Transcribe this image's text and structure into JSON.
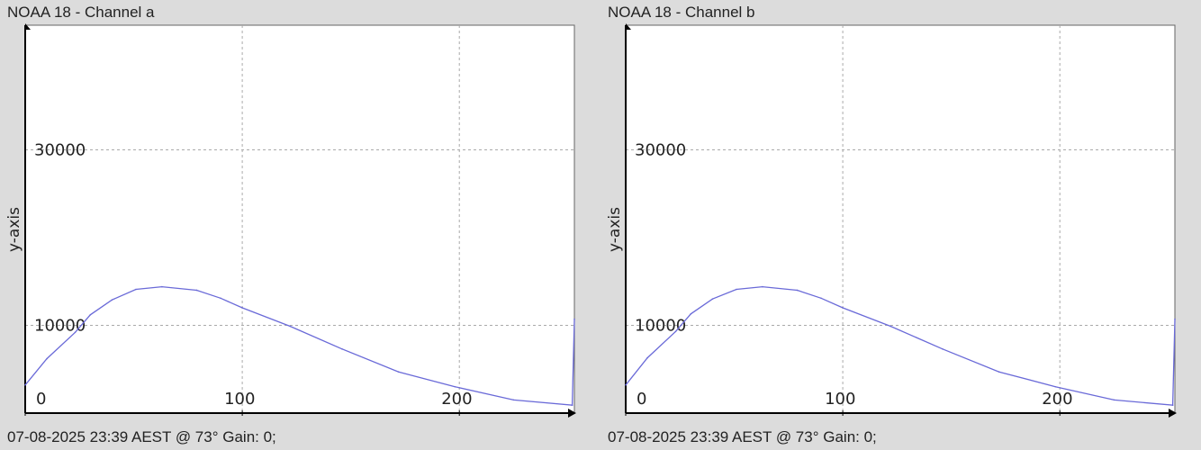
{
  "chart_data": [
    {
      "type": "line",
      "title": "NOAA 18 - Channel a",
      "ylabel": "y-axis",
      "xlabel": "",
      "footer": "07-08-2025 23:39 AEST @ 73° Gain: 0;",
      "xlim": [
        0,
        253
      ],
      "ylim": [
        0,
        44200
      ],
      "grid": true,
      "x_ticks": [
        "0",
        "100",
        "200"
      ],
      "y_ticks": [
        "10000",
        "30000"
      ],
      "line_color": "#6a6ad8",
      "x": [
        0,
        10,
        23,
        30,
        40,
        51,
        63,
        79,
        90,
        100,
        122,
        146,
        172,
        198,
        225,
        252,
        253
      ],
      "y": [
        3200,
        6200,
        9200,
        11200,
        12900,
        14100,
        14400,
        14000,
        13100,
        12000,
        9900,
        7300,
        4700,
        3000,
        1500,
        900,
        10700
      ]
    },
    {
      "type": "line",
      "title": "NOAA 18 - Channel b",
      "ylabel": "y-axis",
      "xlabel": "",
      "footer": "07-08-2025 23:39 AEST @ 73° Gain: 0;",
      "xlim": [
        0,
        253
      ],
      "ylim": [
        0,
        44200
      ],
      "grid": true,
      "x_ticks": [
        "0",
        "100",
        "200"
      ],
      "y_ticks": [
        "10000",
        "30000"
      ],
      "line_color": "#6a6ad8",
      "x": [
        0,
        10,
        23,
        30,
        40,
        51,
        63,
        79,
        90,
        100,
        122,
        146,
        172,
        198,
        225,
        252,
        253
      ],
      "y": [
        3200,
        6300,
        9300,
        11300,
        13000,
        14100,
        14400,
        14000,
        13100,
        12000,
        9900,
        7300,
        4700,
        3000,
        1500,
        900,
        10700
      ]
    }
  ]
}
